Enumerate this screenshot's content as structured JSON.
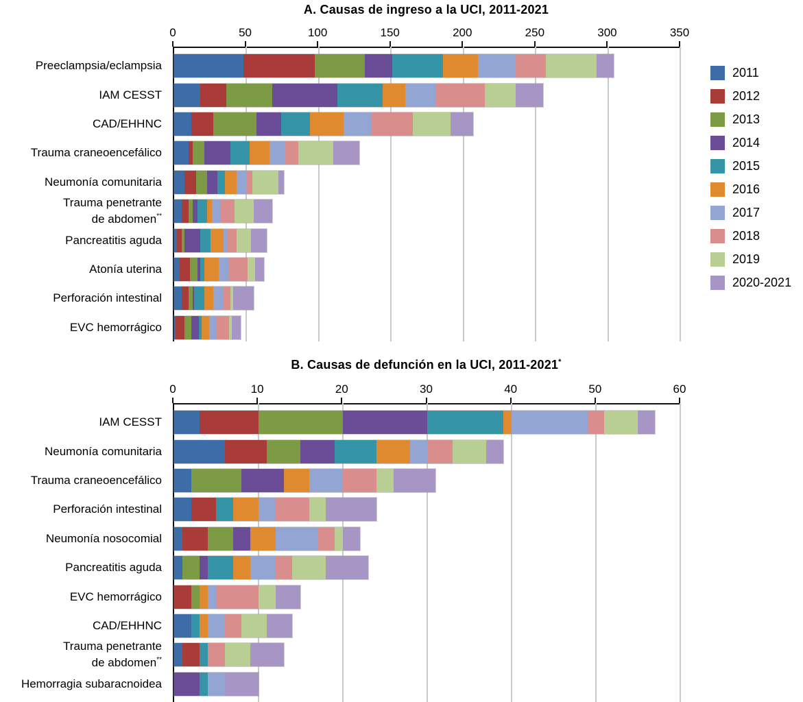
{
  "series": [
    {
      "name": "2011",
      "color": "#3C6DA6"
    },
    {
      "name": "2012",
      "color": "#A93B38"
    },
    {
      "name": "2013",
      "color": "#7D9B44"
    },
    {
      "name": "2014",
      "color": "#6A4D96"
    },
    {
      "name": "2015",
      "color": "#3595A7"
    },
    {
      "name": "2016",
      "color": "#E08A30"
    },
    {
      "name": "2017",
      "color": "#92A5D3"
    },
    {
      "name": "2018",
      "color": "#D98D8C"
    },
    {
      "name": "2019",
      "color": "#B8CE92"
    },
    {
      "name": "2020-2021",
      "color": "#A795C6"
    }
  ],
  "legend": {
    "position": "right",
    "items": [
      "2011",
      "2012",
      "2013",
      "2014",
      "2015",
      "2016",
      "2017",
      "2018",
      "2019",
      "2020-2021"
    ]
  },
  "chart_data": [
    {
      "id": "A",
      "type": "bar",
      "orientation": "horizontal",
      "stacked": true,
      "grid": true,
      "title": "A. Causas de ingreso a la UCI, 2011-2021",
      "title_sup": "",
      "xlabel": "",
      "ylabel": "",
      "xlim": [
        0,
        350
      ],
      "xticks": [
        0,
        50,
        100,
        150,
        200,
        250,
        300,
        350
      ],
      "series_names": [
        "2011",
        "2012",
        "2013",
        "2014",
        "2015",
        "2016",
        "2017",
        "2018",
        "2019",
        "2020-2021"
      ],
      "rows": [
        {
          "label": "Preeclampsia/eclampsia",
          "label2": "",
          "sup": "",
          "values": [
            48,
            49,
            35,
            19,
            35,
            24,
            26,
            21,
            35,
            12
          ]
        },
        {
          "label": "IAM CESST",
          "label2": "",
          "sup": "",
          "values": [
            18,
            18,
            32,
            45,
            31,
            16,
            21,
            34,
            21,
            19
          ]
        },
        {
          "label": "CAD/EHHNC",
          "label2": "",
          "sup": "",
          "values": [
            12,
            15,
            30,
            17,
            20,
            23,
            19,
            29,
            26,
            16
          ]
        },
        {
          "label": "Trauma craneoencefálico",
          "label2": "",
          "sup": "",
          "values": [
            10,
            3,
            8,
            18,
            13,
            14,
            11,
            9,
            24,
            18
          ]
        },
        {
          "label": "Neumonía comunitaria",
          "label2": "",
          "sup": "",
          "values": [
            7,
            8,
            8,
            7,
            5,
            8,
            7,
            4,
            18,
            4
          ]
        },
        {
          "label": "Trauma penetrante",
          "label2": "de abdomen",
          "sup": "**",
          "values": [
            5,
            5,
            3,
            3,
            7,
            3,
            6,
            10,
            13,
            13
          ]
        },
        {
          "label": "Pancreatitis aguda",
          "label2": "",
          "sup": "",
          "values": [
            2,
            3,
            2,
            11,
            7,
            9,
            3,
            6,
            10,
            11
          ]
        },
        {
          "label": "Atonía uterina",
          "label2": "",
          "sup": "",
          "values": [
            4,
            7,
            5,
            2,
            3,
            10,
            7,
            13,
            5,
            6
          ]
        },
        {
          "label": "Perforación intestinal",
          "label2": "",
          "sup": "",
          "values": [
            5,
            5,
            3,
            1,
            7,
            6,
            7,
            5,
            2,
            14
          ]
        },
        {
          "label": "EVC hemorrágico",
          "label2": "",
          "sup": "",
          "values": [
            1,
            6,
            5,
            5,
            2,
            5,
            5,
            9,
            2,
            6
          ]
        }
      ]
    },
    {
      "id": "B",
      "type": "bar",
      "orientation": "horizontal",
      "stacked": true,
      "grid": true,
      "title": "B. Causas de defunción en la UCI, 2011-2021",
      "title_sup": "*",
      "xlabel": "",
      "ylabel": "",
      "xlim": [
        0,
        60
      ],
      "xticks": [
        0,
        10,
        20,
        30,
        40,
        50,
        60
      ],
      "series_names": [
        "2011",
        "2012",
        "2013",
        "2014",
        "2015",
        "2016",
        "2017",
        "2018",
        "2019",
        "2020-2021"
      ],
      "rows": [
        {
          "label": "IAM CESST",
          "label2": "",
          "sup": "",
          "values": [
            3,
            7,
            10,
            10,
            9,
            1,
            9,
            2,
            4,
            2
          ]
        },
        {
          "label": "Neumonía comunitaria",
          "label2": "",
          "sup": "",
          "values": [
            6,
            5,
            4,
            4,
            5,
            4,
            2,
            3,
            4,
            2
          ]
        },
        {
          "label": "Trauma craneoencefálico",
          "label2": "",
          "sup": "",
          "values": [
            2,
            0,
            6,
            5,
            0,
            3,
            4,
            4,
            2,
            5
          ]
        },
        {
          "label": "Perforación intestinal",
          "label2": "",
          "sup": "",
          "values": [
            2,
            3,
            0,
            0,
            2,
            3,
            2,
            4,
            2,
            6
          ]
        },
        {
          "label": "Neumonía nosocomial",
          "label2": "",
          "sup": "",
          "values": [
            1,
            3,
            3,
            2,
            0,
            3,
            5,
            2,
            1,
            2
          ]
        },
        {
          "label": "Pancreatitis aguda",
          "label2": "",
          "sup": "",
          "values": [
            1,
            0,
            2,
            1,
            3,
            2,
            3,
            2,
            4,
            5
          ]
        },
        {
          "label": "EVC hemorrágico",
          "label2": "",
          "sup": "",
          "values": [
            0,
            2,
            1,
            0,
            0,
            1,
            1,
            5,
            2,
            3
          ]
        },
        {
          "label": "CAD/EHHNC",
          "label2": "",
          "sup": "",
          "values": [
            2,
            0,
            0,
            0,
            1,
            1,
            2,
            2,
            3,
            3
          ]
        },
        {
          "label": "Trauma penetrante",
          "label2": "de abdomen",
          "sup": "**",
          "values": [
            1,
            2,
            0,
            0,
            1,
            0,
            0,
            2,
            3,
            4
          ]
        },
        {
          "label": "Hemorragia subaracnoidea",
          "label2": "",
          "sup": "",
          "values": [
            0,
            0,
            0,
            3,
            1,
            0,
            2,
            0,
            0,
            4
          ]
        }
      ]
    }
  ]
}
